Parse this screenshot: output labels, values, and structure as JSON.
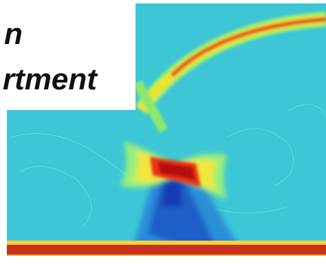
{
  "text": {
    "line1": "n",
    "line2": "rtment"
  }
}
